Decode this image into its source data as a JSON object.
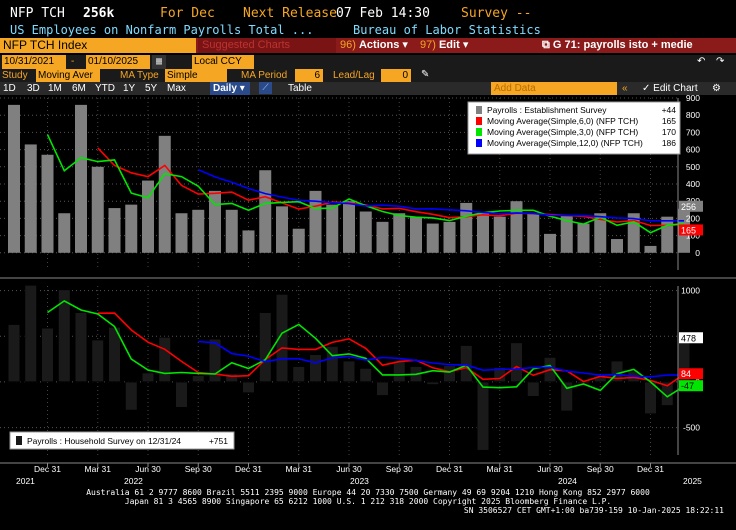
{
  "header": {
    "ticker": "NFP TCH",
    "value": "256k",
    "for_label": "For Dec",
    "release_label": "Next Release",
    "release_date": "07 Feb 14:30",
    "survey_label": "Survey --",
    "description": "US Employees on Nonfarm Payrolls Total ...",
    "source": "Bureau of Labor Statistics"
  },
  "toolbar": {
    "security": "NFP TCH Index",
    "suggested": "Suggested Charts",
    "actions_num": "96)",
    "actions": "Actions",
    "edit_num": "97)",
    "edit": "Edit",
    "title": "G 71: payrolls isto + medie"
  },
  "range": {
    "start": "10/31/2021",
    "end": "01/10/2025",
    "currency": "Local CCY"
  },
  "study_bar": {
    "study_label": "Study",
    "study_value": "Moving Aver",
    "ma_type_label": "MA Type",
    "ma_type_value": "Simple",
    "ma_period_label": "MA Period",
    "ma_period_value": "6",
    "lead_lag_label": "Lead/Lag",
    "lead_lag_value": "0"
  },
  "period_bar": {
    "periods": [
      "1D",
      "3D",
      "1M",
      "6M",
      "YTD",
      "1Y",
      "5Y",
      "Max"
    ],
    "frequency": "Daily",
    "table": "Table",
    "add_data": "Add Data",
    "edit_chart": "Edit Chart"
  },
  "colors": {
    "bar_gray": "#808080",
    "ma6": "#ff0000",
    "ma3": "#00e600",
    "ma12": "#0000ff",
    "bar_black": "#1a1a1a"
  },
  "chart_data": [
    {
      "type": "bar",
      "title": "",
      "legend": [
        {
          "name": "Payrolls : Establishment Survey",
          "last": "+44"
        },
        {
          "name": "Moving Average(Simple,6,0) (NFP TCH)",
          "last": "165"
        },
        {
          "name": "Moving Average(Simple,3,0) (NFP TCH)",
          "last": "170"
        },
        {
          "name": "Moving Average(Simple,12,0) (NFP TCH)",
          "last": "186"
        }
      ],
      "ylim": [
        -100,
        900
      ],
      "yticks": [
        0,
        100,
        200,
        300,
        400,
        500,
        600,
        700,
        800,
        900
      ],
      "last_value_badges": [
        "256",
        "165"
      ],
      "values": [
        860,
        630,
        570,
        230,
        860,
        500,
        260,
        280,
        420,
        680,
        230,
        250,
        360,
        250,
        130,
        480,
        270,
        140,
        360,
        280,
        300,
        240,
        180,
        230,
        210,
        170,
        180,
        290,
        230,
        210,
        300,
        230,
        110,
        220,
        170,
        230,
        80,
        230,
        40,
        210,
        256
      ],
      "series": [
        {
          "name": "Moving Average(Simple,6,0) (NFP TCH)",
          "values": [
            null,
            null,
            null,
            null,
            null,
            610,
            508,
            465,
            443,
            508,
            392,
            341,
            346,
            353,
            306,
            326,
            290,
            254,
            271,
            295,
            290,
            278,
            255,
            258,
            239,
            224,
            204,
            210,
            221,
            215,
            230,
            228,
            222,
            217,
            211,
            195,
            179,
            187,
            159,
            160,
            165
          ]
        },
        {
          "name": "Moving Average(Simple,3,0) (NFP TCH)",
          "values": [
            null,
            null,
            687,
            477,
            553,
            530,
            540,
            347,
            320,
            460,
            443,
            387,
            280,
            287,
            247,
            287,
            293,
            297,
            257,
            260,
            313,
            273,
            240,
            217,
            207,
            203,
            187,
            213,
            233,
            243,
            247,
            247,
            213,
            187,
            167,
            207,
            160,
            180,
            117,
            160,
            170
          ]
        },
        {
          "name": "Moving Average(Simple,12,0) (NFP TCH)",
          "values": [
            null,
            null,
            null,
            null,
            null,
            null,
            null,
            null,
            null,
            null,
            null,
            483,
            441,
            410,
            374,
            344,
            324,
            305,
            300,
            291,
            286,
            272,
            277,
            271,
            255,
            256,
            250,
            244,
            235,
            227,
            232,
            229,
            218,
            217,
            216,
            210,
            203,
            199,
            186,
            186,
            186
          ]
        }
      ]
    },
    {
      "type": "bar",
      "title": "",
      "legend": [
        {
          "name": "Payrolls : Household Survey on 12/31/24",
          "last": "+751"
        }
      ],
      "ylim": [
        -800,
        1050
      ],
      "yticks": [
        -500,
        0,
        500,
        1000
      ],
      "last_value_badges": [
        "478",
        "84",
        "-47"
      ],
      "values": [
        630,
        1060,
        590,
        1010,
        760,
        460,
        600,
        -310,
        100,
        490,
        -280,
        70,
        470,
        90,
        -120,
        760,
        960,
        170,
        300,
        390,
        230,
        150,
        -150,
        230,
        170,
        -30,
        180,
        400,
        -750,
        160,
        430,
        -160,
        270,
        -320,
        -20,
        60,
        230,
        120,
        -350,
        -260,
        478
      ],
      "series": [
        {
          "name": "Moving Average(Simple,6,0)",
          "values": [
            null,
            null,
            null,
            null,
            null,
            752,
            753,
            568,
            435,
            357,
            225,
            103,
            87,
            62,
            68,
            245,
            372,
            356,
            356,
            433,
            472,
            367,
            183,
            222,
            238,
            155,
            111,
            157,
            29,
            37,
            168,
            73,
            134,
            122,
            3,
            61,
            37,
            49,
            17,
            -42,
            84
          ]
        },
        {
          "name": "Moving Average(Simple,3,0)",
          "values": [
            null,
            null,
            760,
            887,
            787,
            743,
            607,
            250,
            130,
            93,
            103,
            93,
            87,
            210,
            147,
            243,
            533,
            630,
            477,
            287,
            307,
            257,
            77,
            77,
            83,
            123,
            107,
            183,
            -57,
            -63,
            -53,
            143,
            180,
            -70,
            -23,
            -93,
            90,
            137,
            0,
            -163,
            -47
          ]
        },
        {
          "name": "Moving Average(Simple,12,0)",
          "values": [
            null,
            null,
            null,
            null,
            null,
            null,
            null,
            null,
            null,
            null,
            null,
            442,
            428,
            310,
            283,
            220,
            254,
            253,
            209,
            263,
            279,
            240,
            267,
            257,
            236,
            207,
            189,
            184,
            128,
            138,
            139,
            158,
            161,
            118,
            98,
            74,
            80,
            63,
            55,
            75,
            76
          ]
        }
      ]
    }
  ],
  "x_axis": {
    "ticks": [
      "Dec 31",
      "Mar 31",
      "Jun 30",
      "Sep 30",
      "Dec 31",
      "Mar 31",
      "Jun 30",
      "Sep 30",
      "Dec 31",
      "Mar 31",
      "Jun 30",
      "Sep 30",
      "Dec 31"
    ],
    "years": [
      "2021",
      "2022",
      "2023",
      "2024",
      "2025"
    ]
  },
  "footer": {
    "line1": "Australia 61 2 9777 8600 Brazil 5511 2395 9000 Europe 44 20 7330 7500 Germany 49 69 9204 1210 Hong Kong 852 2977 6000",
    "line2": "Japan 81 3 4565 8900        Singapore 65 6212 1000        U.S. 1 212 318 2000          Copyright 2025 Bloomberg Finance L.P.",
    "line3": "SN 3506527 CET  GMT+1:00 ba739-159 10-Jan-2025 18:22:11"
  }
}
